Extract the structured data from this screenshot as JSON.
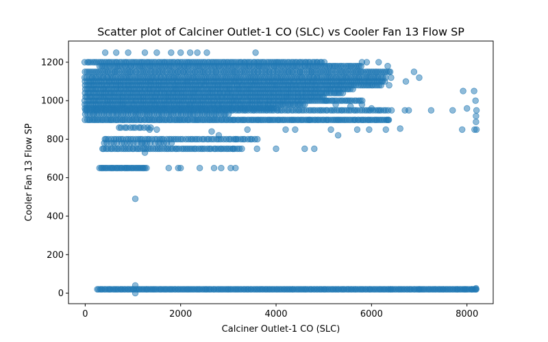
{
  "chart_data": {
    "type": "scatter",
    "title": "Scatter plot of Calciner Outlet-1 CO (SLC) vs Cooler Fan 13 Flow SP",
    "xlabel": "Calciner Outlet-1 CO (SLC)",
    "ylabel": "Cooler Fan 13 Flow SP",
    "xlim": [
      -350,
      8550
    ],
    "ylim": [
      -55,
      1310
    ],
    "xticks": [
      0,
      2000,
      4000,
      6000,
      8000
    ],
    "yticks": [
      0,
      200,
      400,
      600,
      800,
      1000,
      1200
    ],
    "grid": false,
    "legend": "none",
    "color": "#1f77b4",
    "alpha": 0.5,
    "bands": [
      {
        "y": 1200,
        "x_start": 0,
        "x_end": 5000,
        "step": 40
      },
      {
        "y": 1180,
        "x_start": 300,
        "x_end": 5800,
        "step": 40
      },
      {
        "y": 1150,
        "x_start": 0,
        "x_end": 6400,
        "step": 40
      },
      {
        "y": 1120,
        "x_start": 0,
        "x_end": 6300,
        "step": 40
      },
      {
        "y": 1100,
        "x_start": 0,
        "x_end": 6300,
        "step": 40
      },
      {
        "y": 1080,
        "x_start": 0,
        "x_end": 6200,
        "step": 40
      },
      {
        "y": 1060,
        "x_start": 0,
        "x_end": 5600,
        "step": 40
      },
      {
        "y": 1040,
        "x_start": 0,
        "x_end": 5400,
        "step": 40
      },
      {
        "y": 1020,
        "x_start": 0,
        "x_end": 5000,
        "step": 40
      },
      {
        "y": 1000,
        "x_start": 0,
        "x_end": 5800,
        "step": 40
      },
      {
        "y": 980,
        "x_start": 0,
        "x_end": 4600,
        "step": 40
      },
      {
        "y": 960,
        "x_start": 0,
        "x_end": 4000,
        "step": 40
      },
      {
        "y": 950,
        "x_start": 0,
        "x_end": 6300,
        "step": 45
      },
      {
        "y": 930,
        "x_start": 0,
        "x_end": 3000,
        "step": 50
      },
      {
        "y": 900,
        "x_start": 0,
        "x_end": 6400,
        "step": 35
      },
      {
        "y": 860,
        "x_start": 700,
        "x_end": 1400,
        "step": 60
      },
      {
        "y": 800,
        "x_start": 400,
        "x_end": 3600,
        "step": 50
      },
      {
        "y": 780,
        "x_start": 400,
        "x_end": 1800,
        "step": 70
      },
      {
        "y": 750,
        "x_start": 350,
        "x_end": 3300,
        "step": 45
      },
      {
        "y": 650,
        "x_start": 300,
        "x_end": 1300,
        "step": 30
      },
      {
        "y": 20,
        "x_start": 250,
        "x_end": 8200,
        "step": 30
      }
    ],
    "points": [
      [
        1250,
        1250
      ],
      [
        1500,
        1250
      ],
      [
        1800,
        1250
      ],
      [
        2000,
        1250
      ],
      [
        2200,
        1250
      ],
      [
        2350,
        1250
      ],
      [
        2550,
        1250
      ],
      [
        420,
        1250
      ],
      [
        650,
        1250
      ],
      [
        900,
        1250
      ],
      [
        3570,
        1250
      ],
      [
        5800,
        1200
      ],
      [
        5900,
        1200
      ],
      [
        6150,
        1200
      ],
      [
        6340,
        1180
      ],
      [
        6410,
        1120
      ],
      [
        6370,
        1080
      ],
      [
        6890,
        1150
      ],
      [
        7000,
        1120
      ],
      [
        6720,
        1100
      ],
      [
        5050,
        1000
      ],
      [
        5250,
        980
      ],
      [
        5560,
        970
      ],
      [
        5800,
        980
      ],
      [
        6000,
        960
      ],
      [
        6350,
        950
      ],
      [
        6420,
        950
      ],
      [
        6700,
        950
      ],
      [
        6780,
        950
      ],
      [
        7250,
        950
      ],
      [
        7700,
        950
      ],
      [
        8000,
        960
      ],
      [
        8150,
        1050
      ],
      [
        7920,
        1050
      ],
      [
        8180,
        1000
      ],
      [
        8200,
        950
      ],
      [
        8190,
        920
      ],
      [
        8190,
        890
      ],
      [
        8160,
        850
      ],
      [
        8200,
        850
      ],
      [
        7900,
        850
      ],
      [
        6600,
        855
      ],
      [
        6350,
        900
      ],
      [
        6300,
        850
      ],
      [
        5950,
        850
      ],
      [
        5700,
        850
      ],
      [
        5300,
        820
      ],
      [
        5150,
        850
      ],
      [
        4400,
        850
      ],
      [
        4200,
        850
      ],
      [
        3400,
        850
      ],
      [
        2650,
        840
      ],
      [
        1500,
        850
      ],
      [
        1350,
        850
      ],
      [
        2800,
        820
      ],
      [
        1200,
        780
      ],
      [
        1250,
        730
      ],
      [
        4600,
        750
      ],
      [
        4800,
        750
      ],
      [
        4000,
        750
      ],
      [
        3600,
        750
      ],
      [
        3100,
        750
      ],
      [
        3150,
        800
      ],
      [
        4700,
        900
      ],
      [
        1750,
        650
      ],
      [
        1950,
        650
      ],
      [
        2000,
        650
      ],
      [
        2400,
        650
      ],
      [
        2700,
        650
      ],
      [
        2850,
        650
      ],
      [
        3050,
        650
      ],
      [
        3150,
        650
      ],
      [
        1050,
        490
      ],
      [
        1050,
        40
      ],
      [
        1050,
        0
      ],
      [
        8180,
        20
      ],
      [
        8190,
        25
      ],
      [
        6400,
        20
      ],
      [
        7000,
        20
      ],
      [
        7500,
        20
      ],
      [
        7800,
        20
      ],
      [
        7950,
        20
      ],
      [
        8100,
        20
      ]
    ]
  }
}
